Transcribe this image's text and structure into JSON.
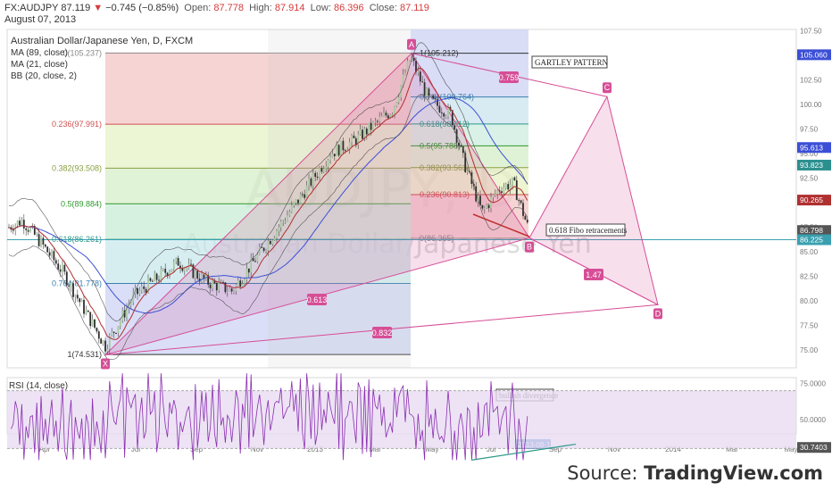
{
  "header": {
    "symbol": "FX:AUDJPY",
    "last": "87.119",
    "arrow": "▼",
    "change": "−0.745 (−0.85%)",
    "open_label": "Open:",
    "open": "87.778",
    "high_label": "High:",
    "high": "87.914",
    "low_label": "Low:",
    "low": "86.396",
    "close_label": "Close:",
    "close": "87.119",
    "date": "August 07, 2013"
  },
  "legend": {
    "title": "Australian Dollar/Japanese Yen, D, FXCM",
    "ma89": "MA (89, close)",
    "ma21": "MA (21, close)",
    "bb": "BB (20, close, 2)"
  },
  "rsi_label": "RSI (14, close)",
  "source": {
    "prefix": "Source: ",
    "brand": "TradingView.com"
  },
  "watermark": {
    "big": "AUDJPY, D",
    "sub": "Australian Dollar/Japanese Yen"
  },
  "colors": {
    "up": "#a9c9a0",
    "down": "#2e2e2e",
    "pattern": "#d64e96",
    "pattern_fill": "rgba(214,78,150,0.18)",
    "ma89": "#3b4fd6",
    "ma21": "#b03030",
    "bb": "#555555",
    "rsi": "#8b2fb0"
  },
  "chart_data": {
    "type": "line",
    "instrument": "AUDJPY",
    "y_axis": {
      "min": 73,
      "max": 107.5,
      "ticks": [
        75.0,
        77.5,
        80.0,
        82.5,
        85.0,
        87.5,
        90.0,
        92.5,
        95.0,
        97.5,
        100.0,
        102.5,
        105.0,
        107.5
      ]
    },
    "x_axis": {
      "labels": [
        "Apr",
        "Jul",
        "Sep",
        "Nov",
        "2013",
        "Mar",
        "May",
        "Jul",
        "Sep",
        "Nov",
        "2014",
        "Mar",
        "May"
      ]
    },
    "price_tags": [
      {
        "value": "105.060",
        "color": "#3b4fd6"
      },
      {
        "value": "95.613",
        "color": "#3b4fd6"
      },
      {
        "value": "93.823",
        "color": "#2c8f8f"
      },
      {
        "value": "90.265",
        "color": "#b03030"
      },
      {
        "value": "87.119",
        "color": "#b03030"
      },
      {
        "value": "86.798",
        "color": "#555555"
      },
      {
        "value": "86.225",
        "color": "#3aa0b0"
      }
    ],
    "fib_left": [
      {
        "label": "0(105.237)",
        "value": 105.237
      },
      {
        "label": "0.236(97.991)",
        "value": 97.991
      },
      {
        "label": "0.382(93.508)",
        "value": 93.508
      },
      {
        "label": "0.5(89.884)",
        "value": 89.884
      },
      {
        "label": "0.618(86.261)",
        "value": 86.261
      },
      {
        "label": "0.764(81.778)",
        "value": 81.778
      },
      {
        "label": "1(74.531)",
        "value": 74.531
      }
    ],
    "fib_right": [
      {
        "label": "1(105.212)",
        "value": 105.212
      },
      {
        "label": "0.764(100.764)",
        "value": 100.764
      },
      {
        "label": "0.618(98.012)",
        "value": 98.012
      },
      {
        "label": "0.5(95.788)",
        "value": 95.788
      },
      {
        "label": "0.382(93.563)",
        "value": 93.563
      },
      {
        "label": "0.236(90.813)",
        "value": 90.813
      },
      {
        "label": "0(86.365)",
        "value": 86.365
      }
    ],
    "pattern_points": [
      {
        "label": "X",
        "value": 74.5
      },
      {
        "label": "A",
        "value": 105.2
      },
      {
        "label": "B",
        "value": 86.4
      },
      {
        "label": "C",
        "value": 100.8
      },
      {
        "label": "D",
        "value": 79.6
      }
    ],
    "ratios": [
      "0.759",
      "0.613",
      "1.47",
      "0.832"
    ],
    "annotations": [
      "GARTLEY PATTERN",
      "0.618 Fibo retracements",
      "bullish divergence"
    ],
    "rsi": {
      "ticks": [
        "75.0000",
        "50.0000",
        "30.7403"
      ],
      "last": "30.7403"
    },
    "date_tag": "2013-08-13"
  }
}
